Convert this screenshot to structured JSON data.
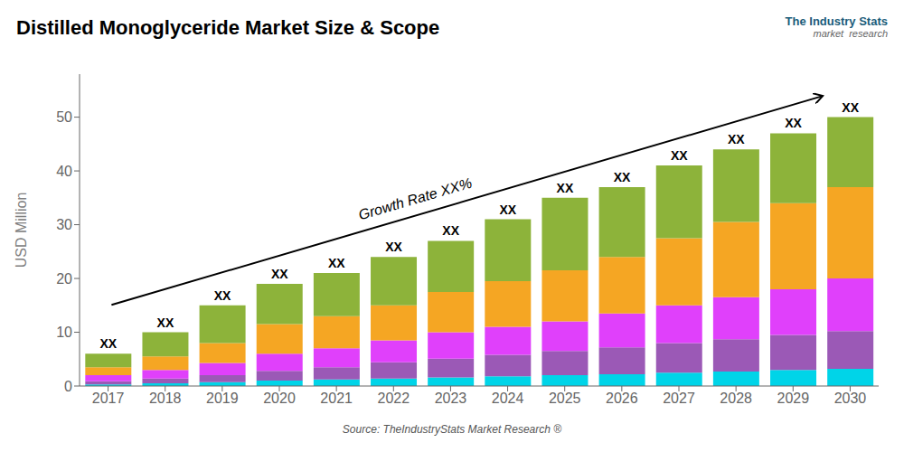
{
  "chart_data": {
    "type": "bar",
    "stacked": true,
    "title": "Distilled Monoglyceride Market Size & Scope",
    "ylabel": "USD Million",
    "categories": [
      "2017",
      "2018",
      "2019",
      "2020",
      "2021",
      "2022",
      "2023",
      "2024",
      "2025",
      "2026",
      "2027",
      "2028",
      "2029",
      "2030"
    ],
    "series": [
      {
        "color": "#00d4e8",
        "values": [
          0.3,
          0.5,
          0.7,
          1.0,
          1.2,
          1.4,
          1.6,
          1.8,
          2.0,
          2.2,
          2.5,
          2.7,
          3.0,
          3.2
        ]
      },
      {
        "color": "#9b59b6",
        "values": [
          0.6,
          0.9,
          1.3,
          1.8,
          2.3,
          3.0,
          3.5,
          4.0,
          4.5,
          5.0,
          5.5,
          6.0,
          6.5,
          7.0
        ]
      },
      {
        "color": "#e040fb",
        "values": [
          1.1,
          1.6,
          2.3,
          3.2,
          3.5,
          4.1,
          4.9,
          5.2,
          5.5,
          6.3,
          7.0,
          7.8,
          8.5,
          9.8
        ]
      },
      {
        "color": "#f5a623",
        "values": [
          1.5,
          2.5,
          3.7,
          5.5,
          6.0,
          6.5,
          7.5,
          8.5,
          9.5,
          10.5,
          12.5,
          14.0,
          16.0,
          17.0
        ]
      },
      {
        "color": "#8db33a",
        "values": [
          2.5,
          4.5,
          7.0,
          7.5,
          8.0,
          9.0,
          9.5,
          11.5,
          13.5,
          13.0,
          13.5,
          13.5,
          13.0,
          13.0
        ]
      }
    ],
    "ylim": [
      0,
      58
    ],
    "yticks": [
      0,
      10,
      20,
      30,
      40,
      50
    ],
    "grid": false,
    "annotations": [
      {
        "text": "XX",
        "category": "2017"
      },
      {
        "text": "XX",
        "category": "2018"
      },
      {
        "text": "XX",
        "category": "2019"
      },
      {
        "text": "XX",
        "category": "2020"
      },
      {
        "text": "XX",
        "category": "2021"
      },
      {
        "text": "XX",
        "category": "2022"
      },
      {
        "text": "XX",
        "category": "2023"
      },
      {
        "text": "XX",
        "category": "2024"
      },
      {
        "text": "XX",
        "category": "2025"
      },
      {
        "text": "XX",
        "category": "2026"
      },
      {
        "text": "XX",
        "category": "2027"
      },
      {
        "text": "XX",
        "category": "2028"
      },
      {
        "text": "XX",
        "category": "2029"
      },
      {
        "text": "XX",
        "category": "2030"
      },
      {
        "text": "Growth Rate XX%"
      },
      {
        "text": "The Industry Stats"
      },
      {
        "text": "market  research"
      },
      {
        "text": "Source: TheIndustryStats Market Research ®"
      }
    ]
  }
}
